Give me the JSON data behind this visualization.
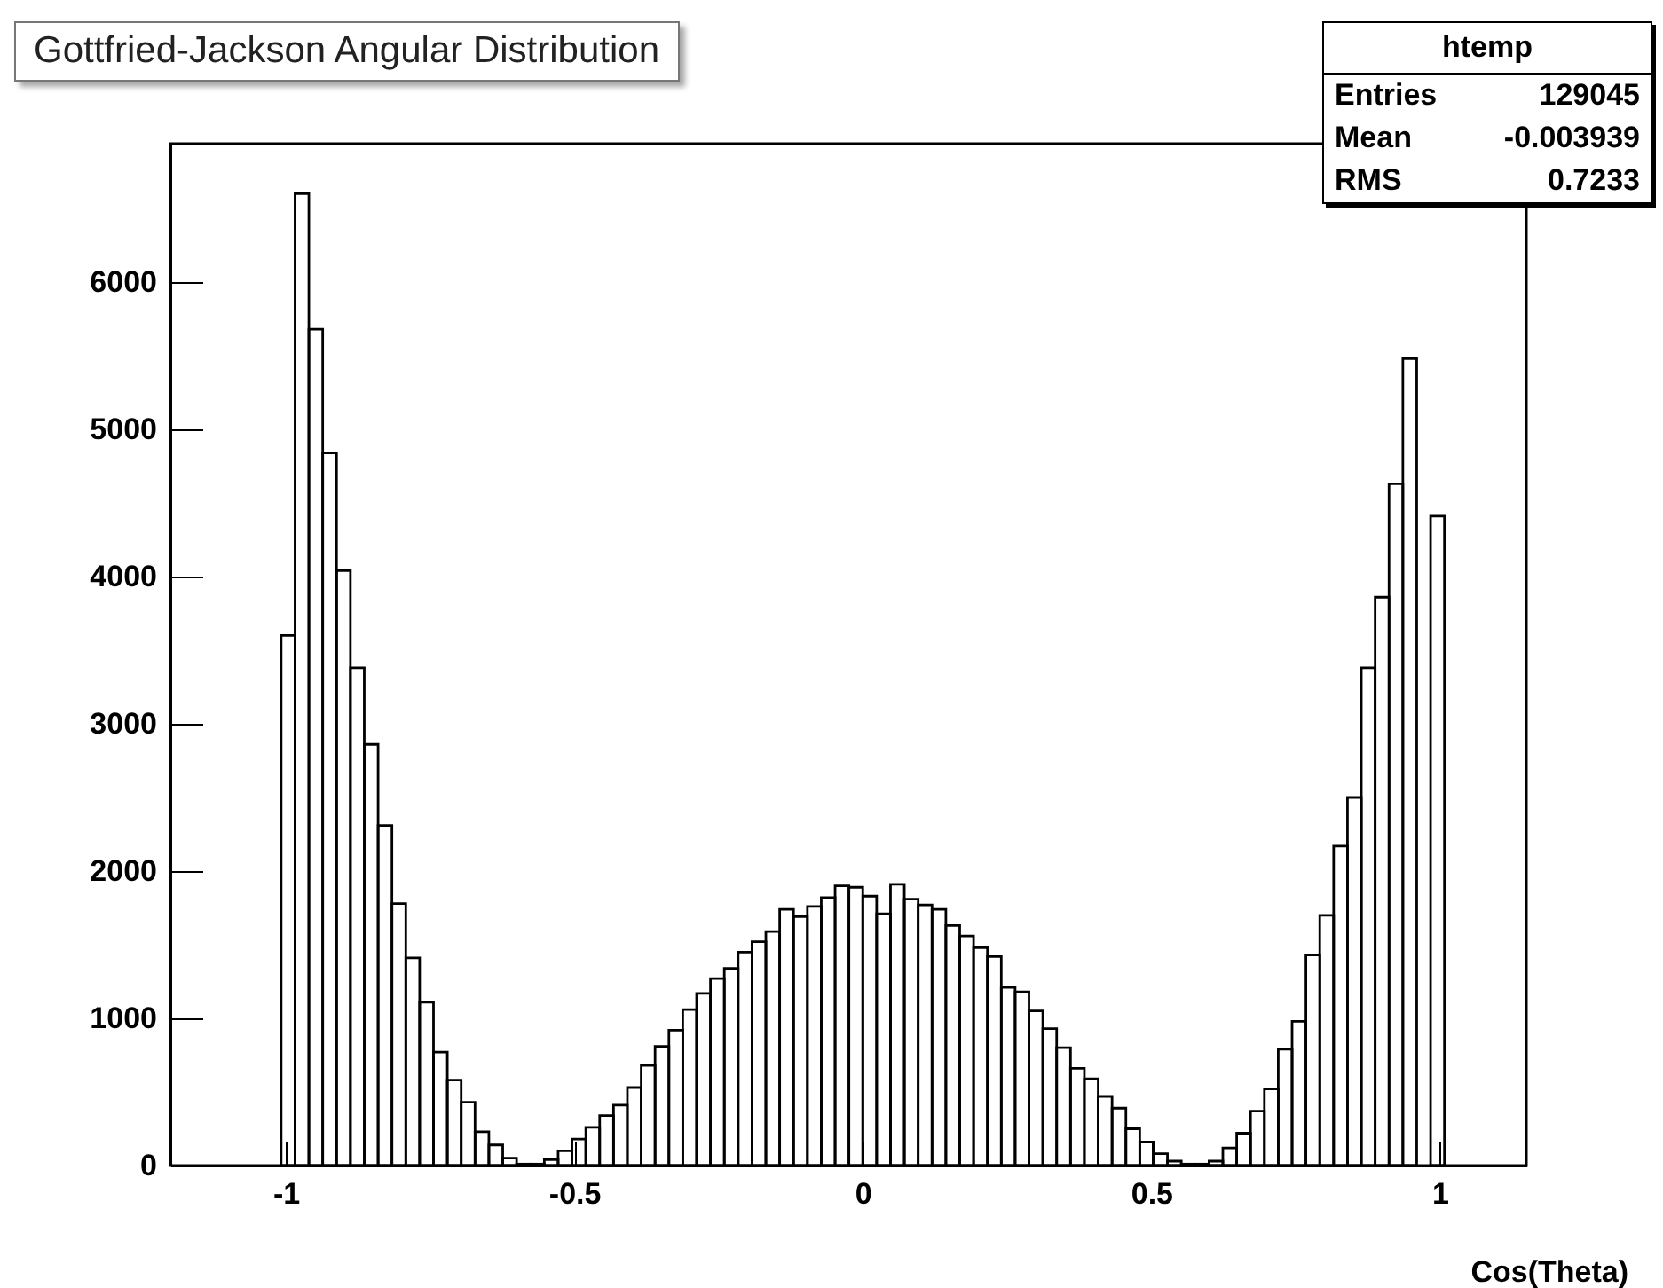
{
  "chart_data": {
    "type": "histogram",
    "title": "Gottfried-Jackson Angular Distribution",
    "xlabel": "Cos(Theta)",
    "annotations": [
      "htemp",
      "Entries",
      "129045",
      "Mean",
      "-0.003939",
      "RMS",
      "0.7233"
    ],
    "bins": [
      -1.008,
      -0.984,
      -0.96,
      -0.936,
      -0.912,
      -0.888,
      -0.864,
      -0.84,
      -0.816,
      -0.792,
      -0.768,
      -0.744,
      -0.72,
      -0.696,
      -0.672,
      -0.648,
      -0.624,
      -0.6,
      -0.576,
      -0.552,
      -0.528,
      -0.504,
      -0.48,
      -0.456,
      -0.432,
      -0.408,
      -0.384,
      -0.36,
      -0.336,
      -0.312,
      -0.288,
      -0.264,
      -0.24,
      -0.216,
      -0.192,
      -0.168,
      -0.144,
      -0.12,
      -0.096,
      -0.072,
      -0.048,
      -0.024,
      0,
      0.024,
      0.048,
      0.072,
      0.096,
      0.12,
      0.144,
      0.168,
      0.192,
      0.216,
      0.24,
      0.264,
      0.288,
      0.312,
      0.336,
      0.36,
      0.384,
      0.408,
      0.432,
      0.456,
      0.48,
      0.504,
      0.528,
      0.552,
      0.576,
      0.6,
      0.624,
      0.648,
      0.672,
      0.696,
      0.72,
      0.744,
      0.768,
      0.792,
      0.816,
      0.84,
      0.864,
      0.888,
      0.912,
      0.936,
      0.96,
      0.984,
      1.008
    ],
    "values": [
      3600,
      6600,
      5680,
      4840,
      4040,
      3380,
      2860,
      2310,
      1780,
      1410,
      1110,
      770,
      580,
      430,
      230,
      140,
      50,
      10,
      10,
      40,
      100,
      180,
      260,
      340,
      410,
      530,
      680,
      810,
      920,
      1060,
      1170,
      1270,
      1340,
      1450,
      1520,
      1590,
      1740,
      1690,
      1760,
      1820,
      1900,
      1890,
      1830,
      1710,
      1910,
      1810,
      1770,
      1740,
      1630,
      1560,
      1480,
      1420,
      1210,
      1180,
      1050,
      930,
      800,
      660,
      590,
      470,
      390,
      250,
      160,
      80,
      30,
      10,
      10,
      30,
      120,
      220,
      370,
      520,
      790,
      980,
      1430,
      1700,
      2170,
      2500,
      3380,
      3860,
      4630,
      5480,
      null,
      4410
    ],
    "color": "#000000",
    "xlim": [
      -1.2,
      1.15
    ],
    "ylim": [
      0,
      6940
    ],
    "xticks": [
      -1,
      -0.5,
      0,
      0.5,
      1
    ],
    "yticks": [
      0,
      1000,
      2000,
      3000,
      4000,
      5000,
      6000
    ]
  }
}
